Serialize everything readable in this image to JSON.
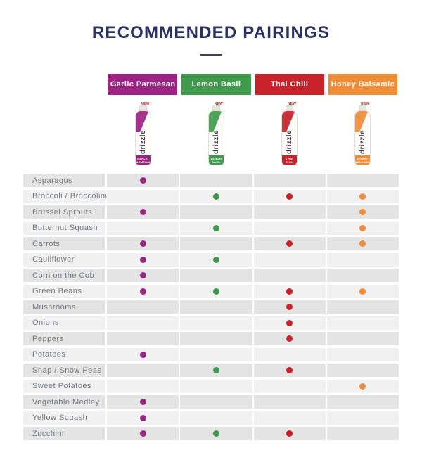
{
  "title": "RECOMMENDED PAIRINGS",
  "bottle": {
    "brand": "drizzle",
    "new_badge": "NEW"
  },
  "colors": {
    "title": "#2B3165",
    "row_label": "#6F777D",
    "stripe_dark": "#E4E4E4",
    "stripe_light": "#F1F1F2"
  },
  "chart_data": {
    "type": "table",
    "title": "RECOMMENDED PAIRINGS",
    "legend_position": "top",
    "columns": [
      {
        "label": "Garlic Parmesan",
        "color": "#9C2383"
      },
      {
        "label": "Lemon Basil",
        "color": "#3F9A4C"
      },
      {
        "label": "Thai Chili",
        "color": "#C8232B"
      },
      {
        "label": "Honey Balsamic",
        "color": "#F08B36"
      }
    ],
    "rows": [
      "Asparagus",
      "Broccoli / Broccolini",
      "Brussel Sprouts",
      "Butternut Squash",
      "Carrots",
      "Cauliflower",
      "Corn on the Cob",
      "Green Beans",
      "Mushrooms",
      "Onions",
      "Peppers",
      "Potatoes",
      "Snap / Snow Peas",
      "Sweet Potatoes",
      "Vegetable Medley",
      "Yellow Squash",
      "Zucchini"
    ],
    "matrix": [
      [
        1,
        0,
        0,
        0
      ],
      [
        0,
        1,
        1,
        1
      ],
      [
        1,
        0,
        0,
        1
      ],
      [
        0,
        1,
        0,
        1
      ],
      [
        1,
        0,
        1,
        1
      ],
      [
        1,
        1,
        0,
        0
      ],
      [
        1,
        0,
        0,
        0
      ],
      [
        1,
        1,
        1,
        1
      ],
      [
        0,
        0,
        1,
        0
      ],
      [
        0,
        0,
        1,
        0
      ],
      [
        0,
        0,
        1,
        0
      ],
      [
        1,
        0,
        0,
        0
      ],
      [
        0,
        1,
        1,
        0
      ],
      [
        0,
        0,
        0,
        1
      ],
      [
        1,
        0,
        0,
        0
      ],
      [
        1,
        0,
        0,
        0
      ],
      [
        1,
        1,
        1,
        0
      ]
    ]
  }
}
